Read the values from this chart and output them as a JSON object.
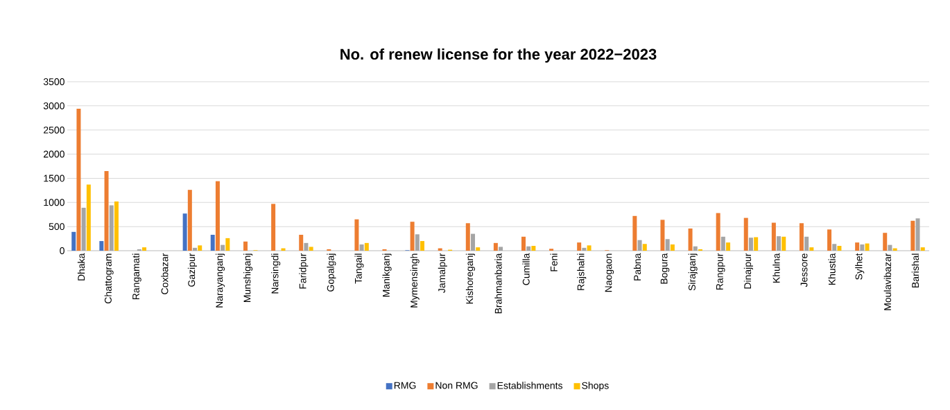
{
  "chart_data": {
    "type": "bar",
    "title": "No. of renew license for the year 2022−2023",
    "categories": [
      "Dhaka",
      "Chattogram",
      "Rangamati",
      "Coxbazar",
      "Gazipur",
      "Narayanganj",
      "Munshiganj",
      "Narsingdi",
      "Faridpur",
      "Gopalgaj",
      "Tangail",
      "Manikganj",
      "Mymensingh",
      "Jamalpur",
      "Kishoreganj",
      "Brahmanbaria",
      "Cumilla",
      "Feni",
      "Rajshahi",
      "Naogaon",
      "Pabna",
      "Bogura",
      "Sirajganj",
      "Rangpur",
      "Dinajpur",
      "Khulna",
      "Jessore",
      "Khustia",
      "Sylhet",
      "Moulavibazar",
      "Barishal"
    ],
    "series": [
      {
        "name": "RMG",
        "color": "#4472c4",
        "values": [
          390,
          200,
          0,
          0,
          770,
          330,
          0,
          0,
          0,
          0,
          0,
          0,
          10,
          0,
          0,
          0,
          0,
          0,
          0,
          0,
          0,
          0,
          0,
          0,
          0,
          0,
          0,
          0,
          0,
          0,
          0
        ]
      },
      {
        "name": "Non RMG",
        "color": "#ed7d31",
        "values": [
          2940,
          1650,
          0,
          0,
          1260,
          1440,
          190,
          970,
          330,
          30,
          650,
          30,
          600,
          50,
          570,
          160,
          290,
          40,
          170,
          10,
          720,
          640,
          460,
          780,
          680,
          580,
          570,
          440,
          170,
          370,
          620
        ]
      },
      {
        "name": "Establishments",
        "color": "#a5a5a5",
        "values": [
          890,
          940,
          30,
          0,
          60,
          120,
          null,
          null,
          160,
          null,
          130,
          0,
          340,
          null,
          350,
          80,
          90,
          0,
          60,
          0,
          220,
          240,
          90,
          290,
          270,
          300,
          290,
          140,
          130,
          120,
          670
        ]
      },
      {
        "name": "Shops",
        "color": "#ffc000",
        "values": [
          1370,
          1020,
          70,
          0,
          110,
          260,
          10,
          50,
          80,
          0,
          160,
          0,
          200,
          20,
          70,
          0,
          100,
          0,
          110,
          0,
          140,
          130,
          30,
          170,
          280,
          290,
          70,
          100,
          150,
          50,
          70
        ]
      }
    ],
    "ylim": [
      0,
      3500
    ],
    "yticks": [
      0,
      500,
      1000,
      1500,
      2000,
      2500,
      3000,
      3500
    ],
    "grid": "y",
    "legend": "bottom"
  }
}
